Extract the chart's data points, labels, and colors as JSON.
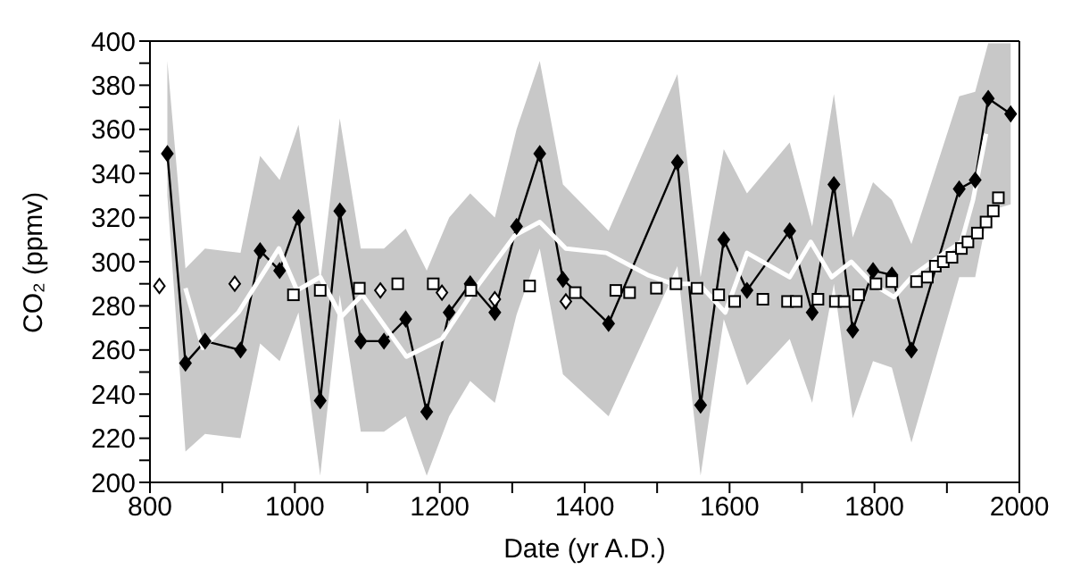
{
  "chart_data": {
    "type": "line",
    "xlabel": "Date (yr A.D.)",
    "ylabel": "CO₂ (ppmv)",
    "xlim": [
      800,
      2000
    ],
    "xticks": [
      800,
      {
        "value": 900,
        "label": null
      },
      1000,
      {
        "value": 1100,
        "label": null
      },
      1200,
      {
        "value": 1300,
        "label": null
      },
      1400,
      {
        "value": 1500,
        "label": null
      },
      1600,
      {
        "value": 1700,
        "label": null
      },
      1800,
      {
        "value": 1900,
        "label": null
      },
      2000
    ],
    "ylim": [
      200,
      400
    ],
    "yticks": [
      200,
      {
        "value": 210,
        "label": null
      },
      220,
      {
        "value": 230,
        "label": null
      },
      240,
      {
        "value": 250,
        "label": null
      },
      260,
      {
        "value": 270,
        "label": null
      },
      280,
      {
        "value": 290,
        "label": null
      },
      300,
      {
        "value": 310,
        "label": null
      },
      320,
      {
        "value": 330,
        "label": null
      },
      340,
      {
        "value": 350,
        "label": null
      },
      360,
      {
        "value": 370,
        "label": null
      },
      380,
      {
        "value": 390,
        "label": null
      },
      400
    ],
    "grid": false,
    "legend": false,
    "series": [
      {
        "color": "#000000",
        "marker": "diamond",
        "line_style": "solid",
        "x": [
          824,
          849,
          876,
          925,
          952,
          979,
          1005,
          1035,
          1062,
          1091,
          1123,
          1153,
          1182,
          1213,
          1242,
          1276,
          1306,
          1338,
          1370,
          1433,
          1528,
          1560,
          1592,
          1624,
          1683,
          1714,
          1744,
          1770,
          1798,
          1824,
          1851,
          1917,
          1939,
          1957,
          1988
        ],
        "values": [
          349,
          254,
          264,
          260,
          305,
          296,
          320,
          237,
          323,
          264,
          264,
          274,
          232,
          277,
          290,
          277,
          316,
          349,
          292,
          272,
          345,
          235,
          310,
          287,
          314,
          277,
          335,
          269,
          296,
          294,
          260,
          333,
          337,
          374,
          367
        ],
        "lower": [
          330,
          214,
          222,
          220,
          263,
          255,
          277,
          203,
          285,
          223,
          223,
          230,
          203,
          230,
          246,
          236,
          276,
          306,
          249,
          230,
          298,
          203,
          274,
          244,
          265,
          236,
          290,
          229,
          255,
          252,
          218,
          293,
          293,
          323,
          326
        ],
        "upper": [
          391,
          297,
          306,
          304,
          348,
          337,
          362,
          291,
          365,
          306,
          306,
          315,
          296,
          320,
          331,
          320,
          360,
          391,
          335,
          314,
          385,
          293,
          351,
          331,
          354,
          316,
          376,
          311,
          336,
          328,
          308,
          375,
          377,
          399,
          399
        ]
      },
      {
        "color": "#ffffff",
        "marker": "none",
        "line_style": "solid",
        "x": [
          849,
          873,
          922,
          978,
          1003,
          1035,
          1064,
          1093,
          1154,
          1203,
          1243,
          1304,
          1338,
          1374,
          1430,
          1487,
          1521,
          1558,
          1594,
          1624,
          1683,
          1712,
          1741,
          1768,
          1797,
          1827,
          1854,
          1888,
          1920,
          1936,
          1954
        ],
        "values": [
          288,
          261,
          277,
          306,
          287,
          293,
          275,
          285,
          257,
          265,
          285,
          312,
          318,
          306,
          304,
          294,
          290,
          290,
          277,
          304,
          293,
          309,
          293,
          300,
          290,
          284,
          294,
          302,
          309,
          328,
          358
        ]
      },
      {
        "type": "scatter",
        "color": "#000000",
        "marker": "diamond",
        "x": [
          813,
          917,
          1118,
          1203,
          1276,
          1374
        ],
        "values": [
          289,
          290,
          287,
          286,
          283,
          282
        ]
      },
      {
        "type": "scatter",
        "color": "#000000",
        "marker": "square",
        "x": [
          998,
          1035,
          1089,
          1142,
          1191,
          1243,
          1324,
          1387,
          1443,
          1462,
          1499,
          1526,
          1555,
          1585,
          1607,
          1646,
          1680,
          1692,
          1722,
          1746,
          1758,
          1778,
          1802,
          1824,
          1846,
          1858,
          1873,
          1884,
          1895,
          1907,
          1920,
          1929,
          1942,
          1954,
          1964,
          1971
        ],
        "values": [
          285,
          287,
          288,
          290,
          290,
          287,
          289,
          286,
          287,
          286,
          288,
          290,
          288,
          285,
          282,
          283,
          282,
          282,
          283,
          282,
          282,
          285,
          290,
          291,
          null,
          291,
          293,
          298,
          300,
          302,
          306,
          309,
          313,
          318,
          323,
          329
        ]
      }
    ]
  }
}
